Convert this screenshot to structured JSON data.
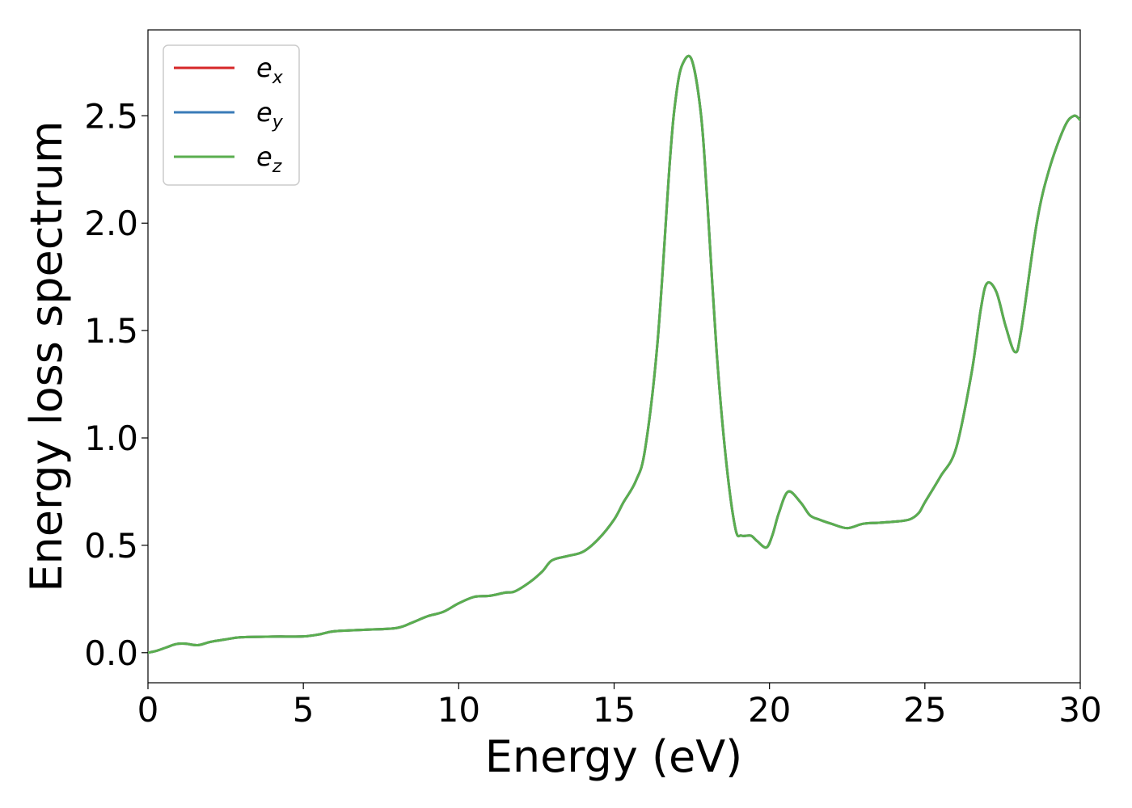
{
  "chart_data": {
    "type": "line",
    "title": "",
    "xlabel": "Energy (eV)",
    "ylabel": "Energy loss spectrum",
    "xlim": [
      0,
      30
    ],
    "ylim": [
      -0.14,
      2.9
    ],
    "xticks": [
      0,
      5,
      10,
      15,
      20,
      25,
      30
    ],
    "yticks": [
      0.0,
      0.5,
      1.0,
      1.5,
      2.0,
      2.5
    ],
    "xtick_labels": [
      "0",
      "5",
      "10",
      "15",
      "20",
      "25",
      "30"
    ],
    "ytick_labels": [
      "0.0",
      "0.5",
      "1.0",
      "1.5",
      "2.0",
      "2.5"
    ],
    "grid": false,
    "legend_position": "top-left",
    "colors": {
      "ex": "#d62728",
      "ey": "#3a7bb8",
      "ez": "#5aae4f"
    },
    "series": [
      {
        "name": "e",
        "subscript": "x",
        "color": "#d62728",
        "x": [
          0,
          0.3,
          0.6,
          0.9,
          1.2,
          1.6,
          2.0,
          2.5,
          3.0,
          4.0,
          5.0,
          5.5,
          6.0,
          7.0,
          8.0,
          8.5,
          9.0,
          9.5,
          10.0,
          10.5,
          11.0,
          11.5,
          11.8,
          12.3,
          12.7,
          13.0,
          13.5,
          14.0,
          14.5,
          15.0,
          15.3,
          15.7,
          16.0,
          16.4,
          16.8,
          17.0,
          17.2,
          17.5,
          17.8,
          18.0,
          18.3,
          18.6,
          18.9,
          19.1,
          19.4,
          19.6,
          19.9,
          20.1,
          20.3,
          20.6,
          21.0,
          21.3,
          21.6,
          22.0,
          22.5,
          23.0,
          23.5,
          24.0,
          24.5,
          24.8,
          25.0,
          25.5,
          26.0,
          26.5,
          26.8,
          27.0,
          27.3,
          27.6,
          27.9,
          28.1,
          28.6,
          29.0,
          29.5,
          29.8,
          30.0
        ],
        "y": [
          0.0,
          0.01,
          0.025,
          0.04,
          0.042,
          0.035,
          0.05,
          0.062,
          0.072,
          0.075,
          0.076,
          0.085,
          0.1,
          0.107,
          0.115,
          0.14,
          0.17,
          0.19,
          0.23,
          0.26,
          0.265,
          0.28,
          0.285,
          0.33,
          0.38,
          0.43,
          0.45,
          0.47,
          0.53,
          0.62,
          0.7,
          0.8,
          0.95,
          1.45,
          2.3,
          2.6,
          2.74,
          2.76,
          2.5,
          2.1,
          1.4,
          0.9,
          0.58,
          0.545,
          0.545,
          0.52,
          0.49,
          0.55,
          0.65,
          0.75,
          0.7,
          0.64,
          0.62,
          0.6,
          0.58,
          0.6,
          0.605,
          0.61,
          0.62,
          0.65,
          0.7,
          0.82,
          0.95,
          1.3,
          1.6,
          1.72,
          1.68,
          1.52,
          1.4,
          1.5,
          2.0,
          2.25,
          2.45,
          2.5,
          2.48
        ]
      },
      {
        "name": "e",
        "subscript": "y",
        "color": "#3a7bb8",
        "x": [
          0,
          0.3,
          0.6,
          0.9,
          1.2,
          1.6,
          2.0,
          2.5,
          3.0,
          4.0,
          5.0,
          5.5,
          6.0,
          7.0,
          8.0,
          8.5,
          9.0,
          9.5,
          10.0,
          10.5,
          11.0,
          11.5,
          11.8,
          12.3,
          12.7,
          13.0,
          13.5,
          14.0,
          14.5,
          15.0,
          15.3,
          15.7,
          16.0,
          16.4,
          16.8,
          17.0,
          17.2,
          17.5,
          17.8,
          18.0,
          18.3,
          18.6,
          18.9,
          19.1,
          19.4,
          19.6,
          19.9,
          20.1,
          20.3,
          20.6,
          21.0,
          21.3,
          21.6,
          22.0,
          22.5,
          23.0,
          23.5,
          24.0,
          24.5,
          24.8,
          25.0,
          25.5,
          26.0,
          26.5,
          26.8,
          27.0,
          27.3,
          27.6,
          27.9,
          28.1,
          28.6,
          29.0,
          29.5,
          29.8,
          30.0
        ],
        "y": [
          0.0,
          0.01,
          0.025,
          0.04,
          0.042,
          0.035,
          0.05,
          0.062,
          0.072,
          0.075,
          0.076,
          0.085,
          0.1,
          0.107,
          0.115,
          0.14,
          0.17,
          0.19,
          0.23,
          0.26,
          0.265,
          0.28,
          0.285,
          0.33,
          0.38,
          0.43,
          0.45,
          0.47,
          0.53,
          0.62,
          0.7,
          0.8,
          0.95,
          1.45,
          2.3,
          2.6,
          2.74,
          2.76,
          2.5,
          2.1,
          1.4,
          0.9,
          0.58,
          0.545,
          0.545,
          0.52,
          0.49,
          0.55,
          0.65,
          0.75,
          0.7,
          0.64,
          0.62,
          0.6,
          0.58,
          0.6,
          0.605,
          0.61,
          0.62,
          0.65,
          0.7,
          0.82,
          0.95,
          1.3,
          1.6,
          1.72,
          1.68,
          1.52,
          1.4,
          1.5,
          2.0,
          2.25,
          2.45,
          2.5,
          2.48
        ]
      },
      {
        "name": "e",
        "subscript": "z",
        "color": "#5aae4f",
        "x": [
          0,
          0.3,
          0.6,
          0.9,
          1.2,
          1.6,
          2.0,
          2.5,
          3.0,
          4.0,
          5.0,
          5.5,
          6.0,
          7.0,
          8.0,
          8.5,
          9.0,
          9.5,
          10.0,
          10.5,
          11.0,
          11.5,
          11.8,
          12.3,
          12.7,
          13.0,
          13.5,
          14.0,
          14.5,
          15.0,
          15.3,
          15.7,
          16.0,
          16.4,
          16.8,
          17.0,
          17.2,
          17.5,
          17.8,
          18.0,
          18.3,
          18.6,
          18.9,
          19.1,
          19.4,
          19.6,
          19.9,
          20.1,
          20.3,
          20.6,
          21.0,
          21.3,
          21.6,
          22.0,
          22.5,
          23.0,
          23.5,
          24.0,
          24.5,
          24.8,
          25.0,
          25.5,
          26.0,
          26.5,
          26.8,
          27.0,
          27.3,
          27.6,
          27.9,
          28.1,
          28.6,
          29.0,
          29.5,
          29.8,
          30.0
        ],
        "y": [
          0.0,
          0.01,
          0.025,
          0.04,
          0.042,
          0.035,
          0.05,
          0.062,
          0.072,
          0.075,
          0.076,
          0.085,
          0.1,
          0.107,
          0.115,
          0.14,
          0.17,
          0.19,
          0.23,
          0.26,
          0.265,
          0.28,
          0.285,
          0.33,
          0.38,
          0.43,
          0.45,
          0.47,
          0.53,
          0.62,
          0.7,
          0.8,
          0.95,
          1.45,
          2.3,
          2.6,
          2.74,
          2.76,
          2.5,
          2.1,
          1.4,
          0.9,
          0.58,
          0.545,
          0.545,
          0.52,
          0.49,
          0.55,
          0.65,
          0.75,
          0.7,
          0.64,
          0.62,
          0.6,
          0.58,
          0.6,
          0.605,
          0.61,
          0.62,
          0.65,
          0.7,
          0.82,
          0.95,
          1.3,
          1.6,
          1.72,
          1.68,
          1.52,
          1.4,
          1.5,
          2.0,
          2.25,
          2.45,
          2.5,
          2.48
        ]
      }
    ]
  }
}
